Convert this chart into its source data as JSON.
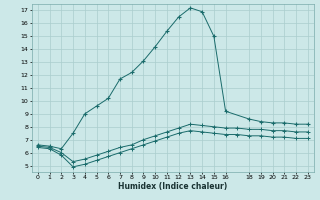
{
  "xlabel": "Humidex (Indice chaleur)",
  "bg_color": "#cce8e8",
  "grid_color": "#aacece",
  "line_color": "#1a6b6b",
  "xlim": [
    -0.5,
    23.5
  ],
  "ylim": [
    4.5,
    17.5
  ],
  "xticks": [
    0,
    1,
    2,
    3,
    4,
    5,
    6,
    7,
    8,
    9,
    10,
    11,
    12,
    13,
    14,
    15,
    16,
    18,
    19,
    20,
    21,
    22,
    23
  ],
  "yticks": [
    5,
    6,
    7,
    8,
    9,
    10,
    11,
    12,
    13,
    14,
    15,
    16,
    17
  ],
  "line1_x": [
    0,
    1,
    2,
    3,
    4,
    5,
    6,
    7,
    8,
    9,
    10,
    11,
    12,
    13,
    14,
    15,
    16,
    18,
    19,
    20,
    21,
    22,
    23
  ],
  "line1_y": [
    6.6,
    6.5,
    6.3,
    7.5,
    9.0,
    9.6,
    10.2,
    11.7,
    12.2,
    13.1,
    14.2,
    15.4,
    16.5,
    17.2,
    16.9,
    15.0,
    9.2,
    8.6,
    8.4,
    8.3,
    8.3,
    8.2,
    8.2
  ],
  "line2_x": [
    0,
    1,
    2,
    3,
    4,
    5,
    6,
    7,
    8,
    9,
    10,
    11,
    12,
    13,
    14,
    15,
    16,
    17,
    18,
    19,
    20,
    21,
    22,
    23
  ],
  "line2_y": [
    6.5,
    6.4,
    6.0,
    5.3,
    5.5,
    5.8,
    6.1,
    6.4,
    6.6,
    7.0,
    7.3,
    7.6,
    7.9,
    8.2,
    8.1,
    8.0,
    7.9,
    7.9,
    7.8,
    7.8,
    7.7,
    7.7,
    7.6,
    7.6
  ],
  "line3_x": [
    0,
    1,
    2,
    3,
    4,
    5,
    6,
    7,
    8,
    9,
    10,
    11,
    12,
    13,
    14,
    15,
    16,
    17,
    18,
    19,
    20,
    21,
    22,
    23
  ],
  "line3_y": [
    6.4,
    6.3,
    5.8,
    4.9,
    5.1,
    5.4,
    5.7,
    6.0,
    6.3,
    6.6,
    6.9,
    7.2,
    7.5,
    7.7,
    7.6,
    7.5,
    7.4,
    7.4,
    7.3,
    7.3,
    7.2,
    7.2,
    7.1,
    7.1
  ]
}
